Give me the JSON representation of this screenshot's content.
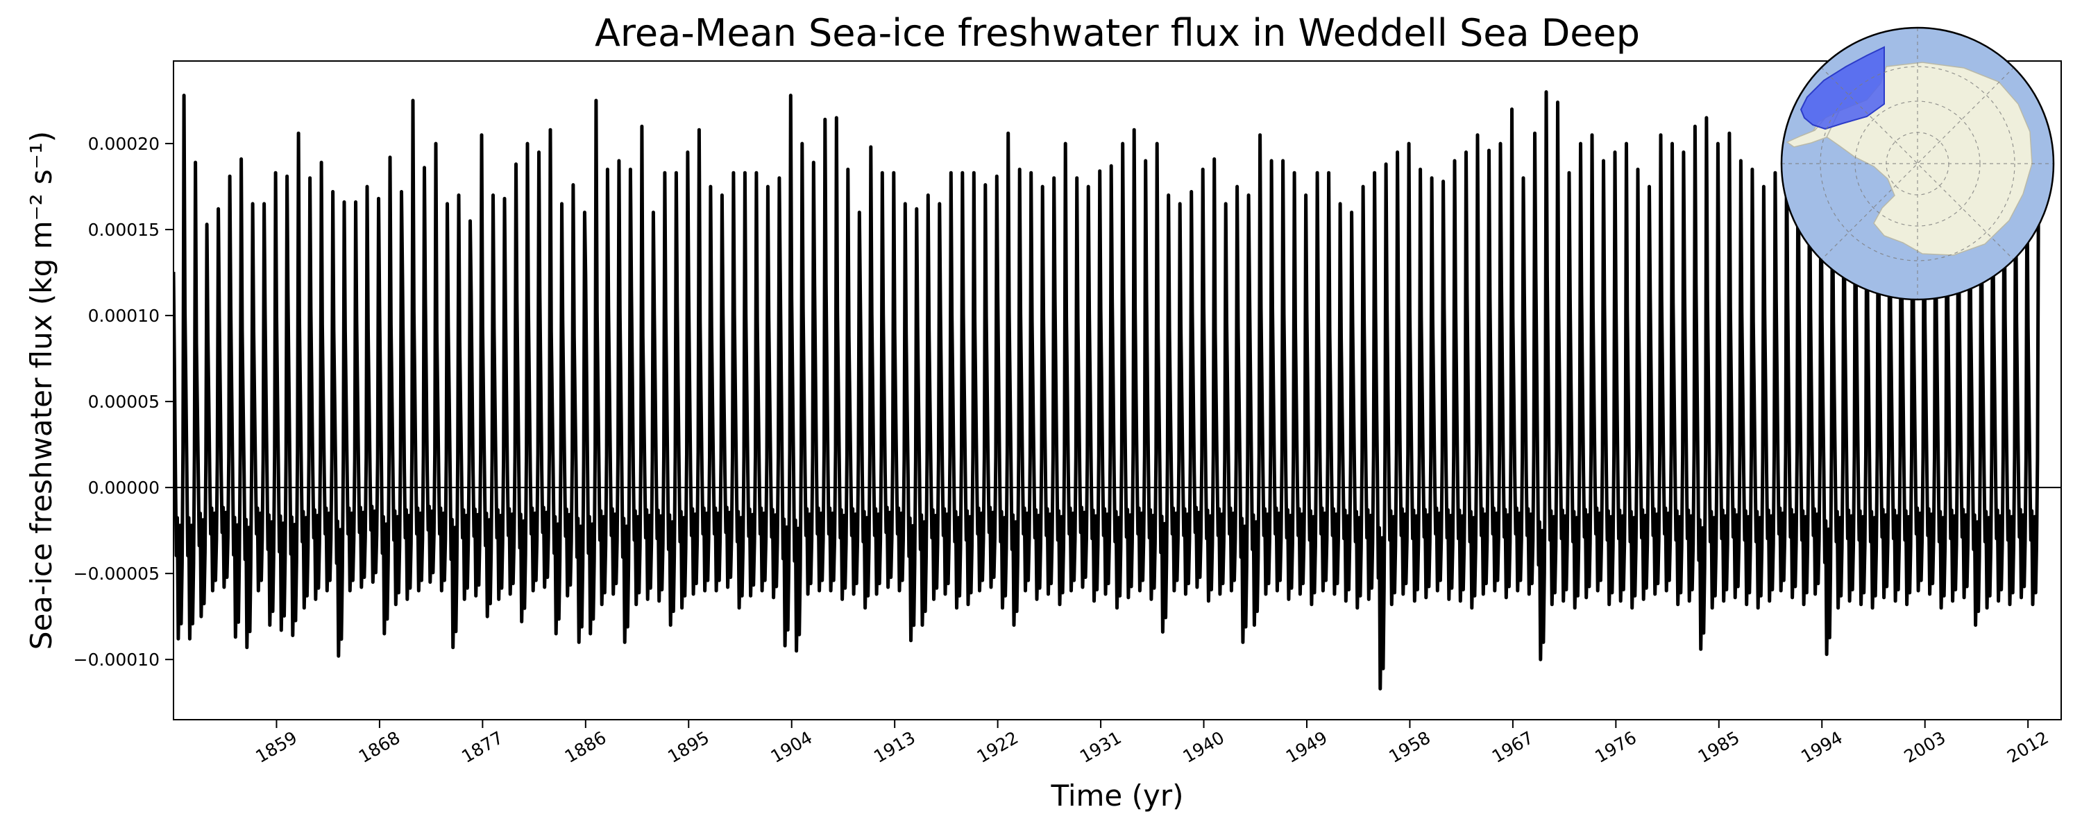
{
  "chart_data": {
    "type": "line",
    "title": "Area-Mean Sea-ice freshwater flux in Weddell Sea Deep",
    "xlabel": "Time (yr)",
    "ylabel": "Sea-ice freshwater flux (kg m⁻² s⁻¹)",
    "x_range": [
      1850.0,
      2014.9
    ],
    "ylim": [
      -0.000135,
      0.000248
    ],
    "x_ticks": [
      1859,
      1868,
      1877,
      1886,
      1895,
      1904,
      1913,
      1922,
      1931,
      1940,
      1949,
      1958,
      1967,
      1976,
      1985,
      1994,
      2003,
      2012
    ],
    "x_tick_labels": [
      "1859",
      "1868",
      "1877",
      "1886",
      "1895",
      "1904",
      "1913",
      "1922",
      "1931",
      "1940",
      "1949",
      "1958",
      "1967",
      "1976",
      "1985",
      "1994",
      "2003",
      "2012"
    ],
    "y_ticks": [
      -0.0001,
      -5e-05,
      0.0,
      5e-05,
      0.0001,
      0.00015,
      0.0002
    ],
    "y_tick_labels": [
      "−0.00010",
      "−0.00005",
      "0.00000",
      "0.00005",
      "0.00010",
      "0.00015",
      "0.00020"
    ],
    "grid": false,
    "legend": "none",
    "line_color": "#000000",
    "zero_line_color": "#000000",
    "series": [
      {
        "resolution": "monthly",
        "seasonal_cycle_note": "one positive peak per year (winter ice growth), two small negative dips per year (melt)",
        "start_year": 1850,
        "annual_max": [
          0.000228,
          0.000189,
          0.000153,
          0.000162,
          0.000181,
          0.000191,
          0.000165,
          0.000165,
          0.000183,
          0.000181,
          0.000206,
          0.00018,
          0.000189,
          0.000172,
          0.000166,
          0.000166,
          0.000175,
          0.000168,
          0.000192,
          0.000172,
          0.000225,
          0.000186,
          0.0002,
          0.000165,
          0.00017,
          0.000155,
          0.000205,
          0.00017,
          0.000168,
          0.000188,
          0.0002,
          0.000195,
          0.000208,
          0.000165,
          0.000176,
          0.00016,
          0.000225,
          0.000185,
          0.00019,
          0.000185,
          0.00021,
          0.00016,
          0.000183,
          0.000183,
          0.000195,
          0.000208,
          0.000175,
          0.00017,
          0.000183,
          0.000183,
          0.000183,
          0.000175,
          0.00018,
          0.000228,
          0.0002,
          0.000189,
          0.000214,
          0.000215,
          0.000185,
          0.00016,
          0.000198,
          0.000183,
          0.000183,
          0.000165,
          0.000162,
          0.00017,
          0.000165,
          0.000183,
          0.000183,
          0.000183,
          0.000176,
          0.000181,
          0.000206,
          0.000185,
          0.000183,
          0.000175,
          0.00018,
          0.0002,
          0.00018,
          0.000175,
          0.000184,
          0.000187,
          0.0002,
          0.000208,
          0.00019,
          0.0002,
          0.00017,
          0.000165,
          0.000172,
          0.000185,
          0.000191,
          0.000165,
          0.000175,
          0.00017,
          0.000205,
          0.00019,
          0.00019,
          0.000183,
          0.00017,
          0.000183,
          0.000183,
          0.000165,
          0.00016,
          0.000175,
          0.000183,
          0.000188,
          0.000195,
          0.0002,
          0.000185,
          0.00018,
          0.000178,
          0.00019,
          0.000195,
          0.000205,
          0.000196,
          0.0002,
          0.00022,
          0.00018,
          0.000206,
          0.00023,
          0.000224,
          0.000183,
          0.0002,
          0.000205,
          0.00019,
          0.000195,
          0.0002,
          0.000185,
          0.000175,
          0.000205,
          0.0002,
          0.000195,
          0.00021,
          0.000215,
          0.0002,
          0.000206,
          0.00019,
          0.000185,
          0.000175,
          0.000183,
          0.0002,
          0.000205,
          0.000195,
          0.00019,
          0.00018,
          0.000175,
          0.000183,
          0.00019,
          0.000185,
          0.00018,
          0.000185,
          0.00019,
          0.00018,
          0.000175,
          0.000183,
          0.00019,
          0.000185,
          0.00018,
          0.000175,
          0.000185,
          0.00018,
          0.000175,
          0.00017,
          0.00017
        ],
        "annual_min": [
          -8.8e-05,
          -8.8e-05,
          -7.5e-05,
          -6e-05,
          -5.8e-05,
          -8.7e-05,
          -9.3e-05,
          -6e-05,
          -8e-05,
          -8.3e-05,
          -8.6e-05,
          -7e-05,
          -6.5e-05,
          -6e-05,
          -9.8e-05,
          -6e-05,
          -5.8e-05,
          -5.5e-05,
          -8.5e-05,
          -6.8e-05,
          -6.5e-05,
          -6e-05,
          -5.5e-05,
          -6e-05,
          -9.3e-05,
          -6.5e-05,
          -6.3e-05,
          -7.5e-05,
          -6.5e-05,
          -6.2e-05,
          -7.8e-05,
          -6e-05,
          -5.8e-05,
          -8.5e-05,
          -6.3e-05,
          -9e-05,
          -8.5e-05,
          -6.8e-05,
          -6.2e-05,
          -9e-05,
          -6.8e-05,
          -6.5e-05,
          -6.6e-05,
          -8e-05,
          -7e-05,
          -6.2e-05,
          -6e-05,
          -6e-05,
          -5.8e-05,
          -7e-05,
          -6.3e-05,
          -6e-05,
          -6.4e-05,
          -9.2e-05,
          -9.5e-05,
          -6.2e-05,
          -6e-05,
          -6e-05,
          -6.5e-05,
          -6.2e-05,
          -7e-05,
          -6.2e-05,
          -5.8e-05,
          -6e-05,
          -8.9e-05,
          -8e-05,
          -6.5e-05,
          -6.2e-05,
          -7e-05,
          -6.8e-05,
          -6e-05,
          -5.8e-05,
          -7e-05,
          -8e-05,
          -6e-05,
          -6.5e-05,
          -6.2e-05,
          -6.8e-05,
          -6e-05,
          -5.8e-05,
          -6.6e-05,
          -6.2e-05,
          -7e-05,
          -6.4e-05,
          -6e-05,
          -6.5e-05,
          -8.4e-05,
          -6e-05,
          -6.2e-05,
          -5.8e-05,
          -6.6e-05,
          -6.2e-05,
          -6e-05,
          -9e-05,
          -8e-05,
          -6.2e-05,
          -6e-05,
          -6.5e-05,
          -6.2e-05,
          -6.8e-05,
          -6e-05,
          -6.2e-05,
          -6.6e-05,
          -7e-05,
          -6.5e-05,
          -0.000117,
          -6.8e-05,
          -6.2e-05,
          -6.6e-05,
          -6.4e-05,
          -6e-05,
          -6.5e-05,
          -6.6e-05,
          -7e-05,
          -6.2e-05,
          -6e-05,
          -6.4e-05,
          -6e-05,
          -6.2e-05,
          -0.0001,
          -6.8e-05,
          -6.6e-05,
          -7e-05,
          -6.4e-05,
          -6e-05,
          -6.8e-05,
          -6.6e-05,
          -7e-05,
          -6.5e-05,
          -6.2e-05,
          -6e-05,
          -6.8e-05,
          -6.6e-05,
          -9.4e-05,
          -7e-05,
          -6.6e-05,
          -6.4e-05,
          -6.8e-05,
          -7e-05,
          -6.6e-05,
          -6e-05,
          -6.4e-05,
          -6.8e-05,
          -6.2e-05,
          -9.7e-05,
          -7e-05,
          -6.6e-05,
          -6.8e-05,
          -7e-05,
          -6.4e-05,
          -6.6e-05,
          -6.8e-05,
          -6e-05,
          -6.2e-05,
          -7e-05,
          -6.6e-05,
          -6.4e-05,
          -8e-05,
          -7e-05,
          -6.6e-05,
          -6.8e-05,
          -6.4e-05,
          -6.8e-05
        ]
      }
    ]
  },
  "inset_map": {
    "projection": "south-polar stereographic",
    "region": "Weddell Sea Deep",
    "ocean_color": "#a2bde6",
    "land_color": "#efefdc",
    "region_color": "#4f63f0",
    "graticule": "dashed"
  }
}
